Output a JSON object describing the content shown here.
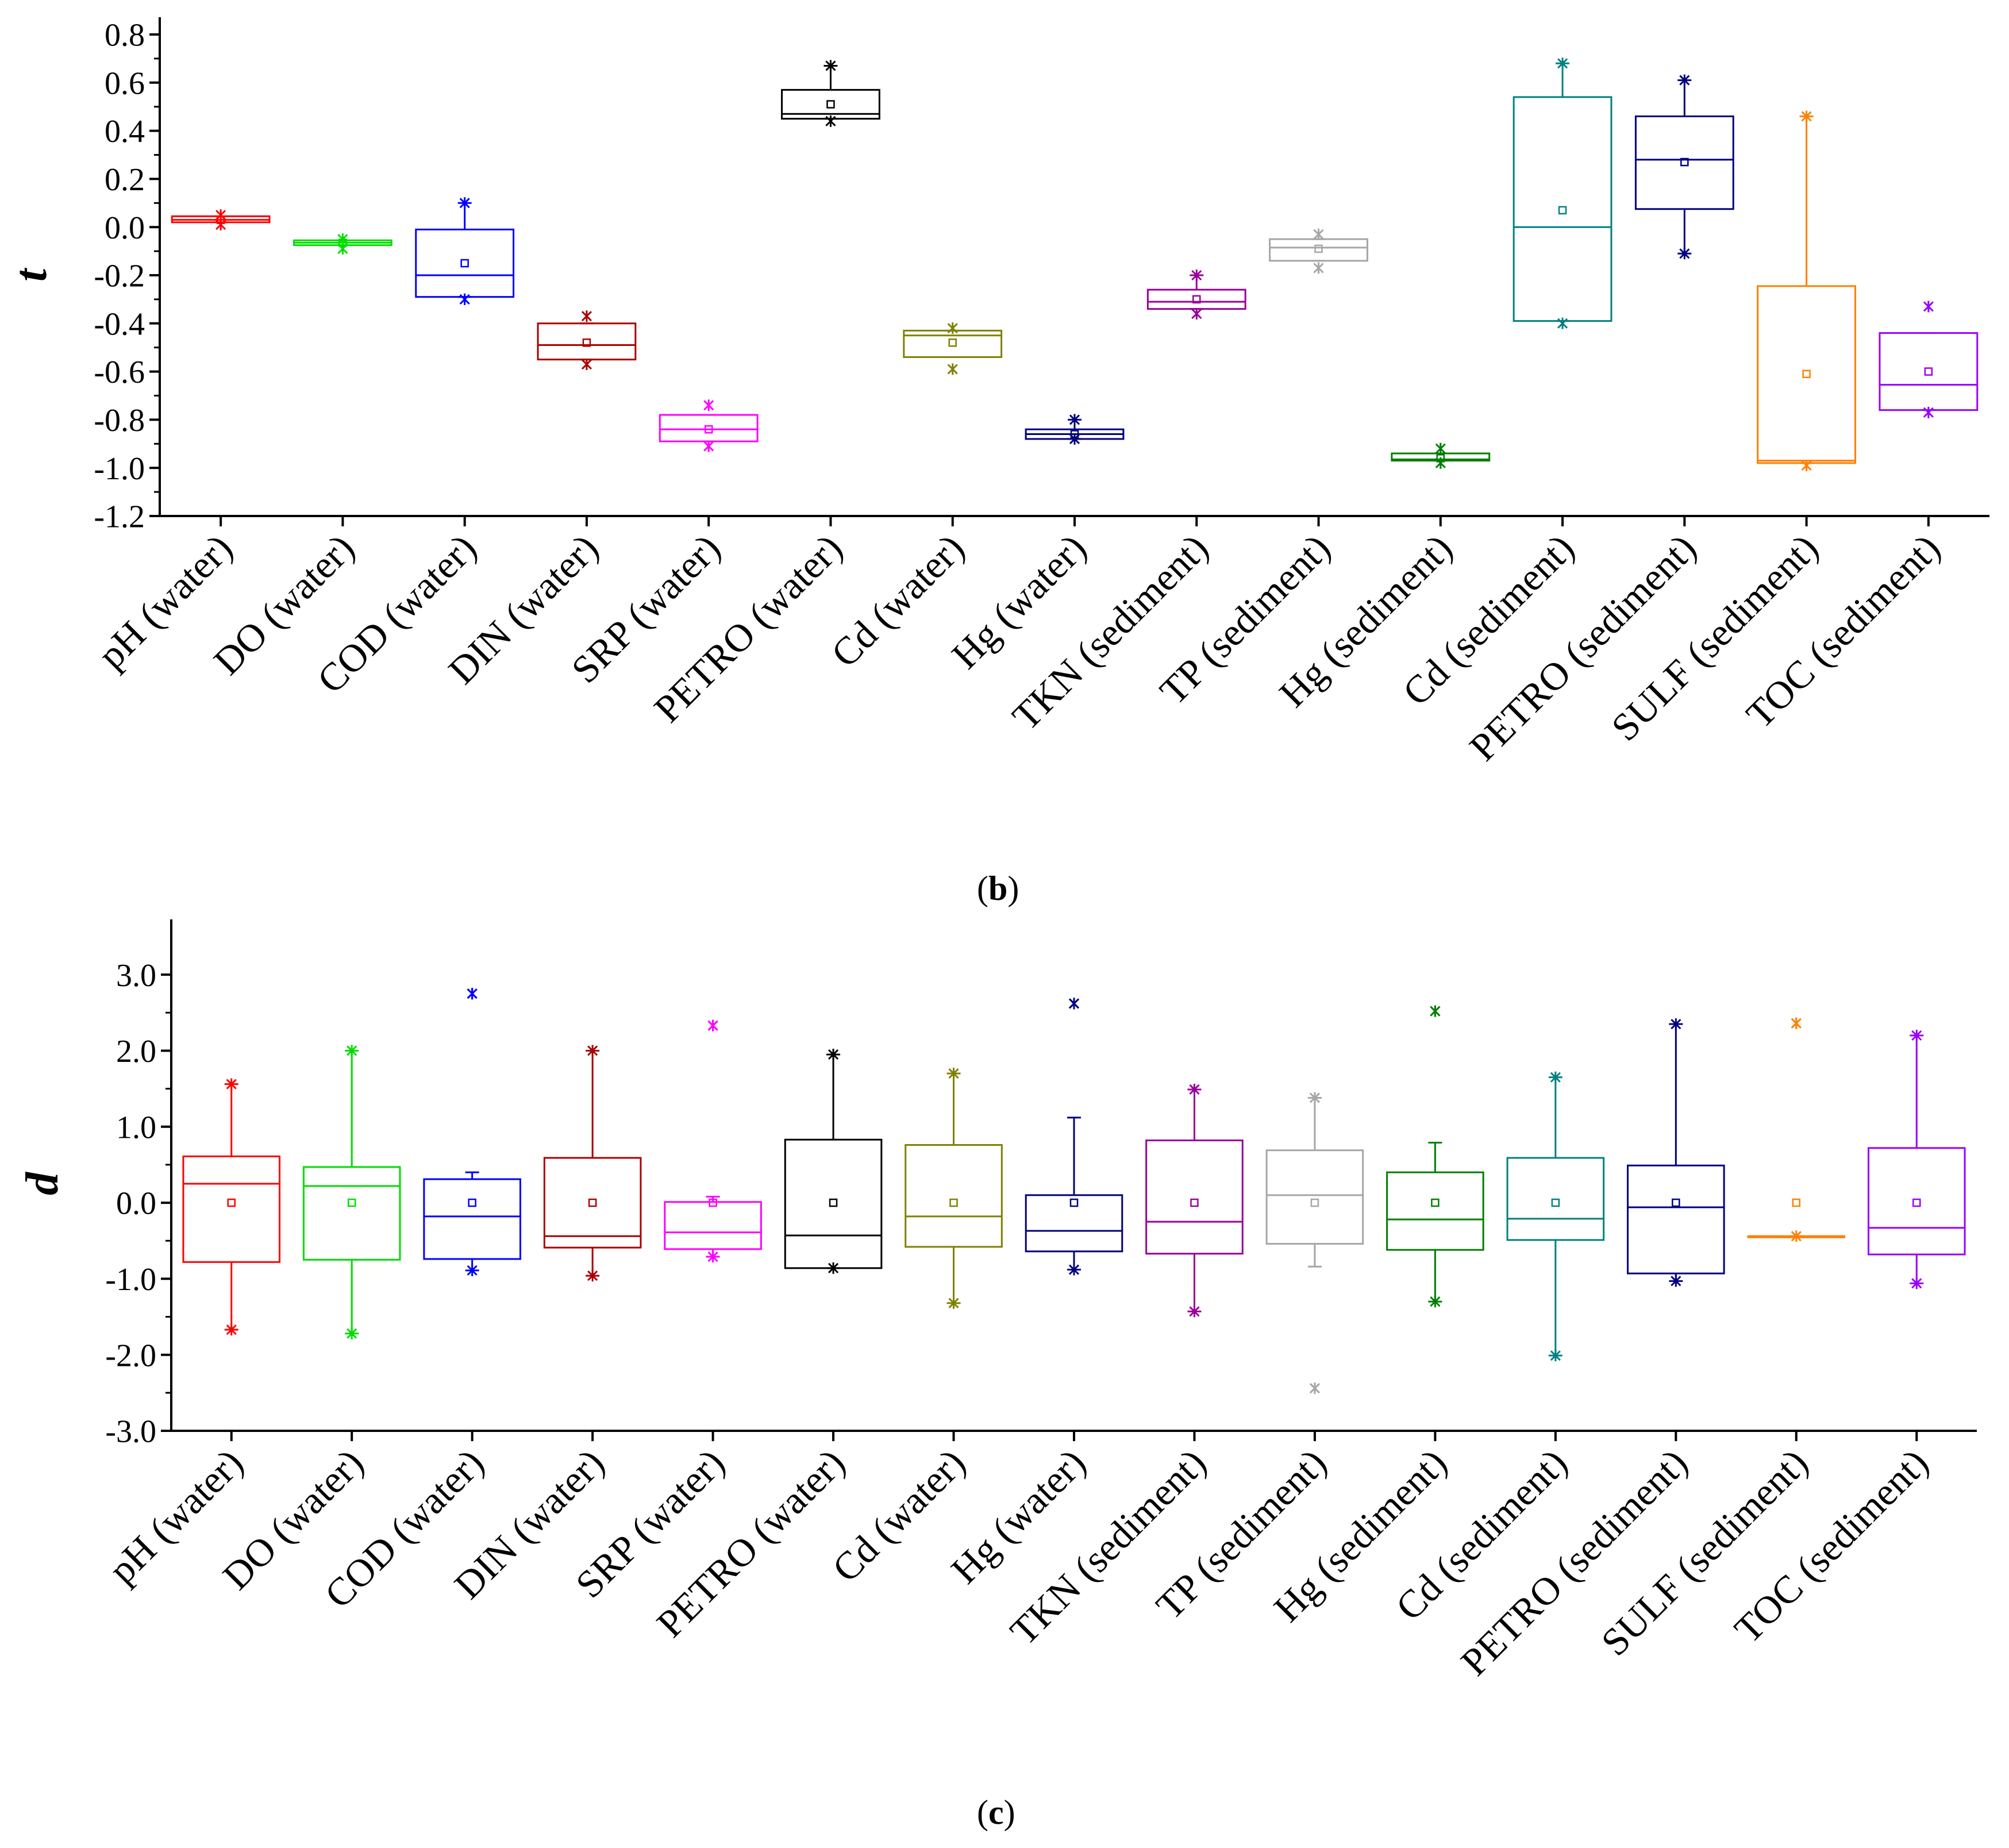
{
  "chart_data": [
    {
      "type": "box",
      "panel_letter": "b",
      "ylabel": "t",
      "ylim": [
        -1.2,
        0.8
      ],
      "yticks": [
        "0.8",
        "0.6",
        "0.4",
        "0.2",
        "0.0",
        "-0.2",
        "-0.4",
        "-0.6",
        "-0.8",
        "-1.0",
        "-1.2"
      ],
      "yticks_values": [
        0.8,
        0.6,
        0.4,
        0.2,
        0.0,
        -0.2,
        -0.4,
        -0.6,
        -0.8,
        -1.0,
        -1.2
      ],
      "categories": [
        "pH (water)",
        "DO (water)",
        "COD (water)",
        "DIN (water)",
        "SRP (water)",
        "PETRO (water)",
        "Cd (water)",
        "Hg (water)",
        "TKN (sediment)",
        "TP (sediment)",
        "Hg (sediment)",
        "Cd (sediment)",
        "PETRO (sediment)",
        "SULF (sediment)",
        "TOC (sediment)"
      ],
      "colors": [
        "#ff0000",
        "#00dd00",
        "#0000ff",
        "#aa0000",
        "#ff00ff",
        "#000000",
        "#808000",
        "#000080",
        "#990099",
        "#a6a6a6",
        "#007f00",
        "#008080",
        "#000080",
        "#ff8000",
        "#9900ff"
      ],
      "boxes": [
        {
          "q1": 0.02,
          "median": 0.03,
          "q3": 0.045,
          "mean": 0.03,
          "min": 0.01,
          "max": 0.05,
          "whisk_lo": 0.02,
          "whisk_hi": 0.045
        },
        {
          "q1": -0.075,
          "median": -0.065,
          "q3": -0.055,
          "mean": -0.065,
          "min": -0.09,
          "max": -0.05,
          "whisk_lo": -0.075,
          "whisk_hi": -0.055
        },
        {
          "q1": -0.29,
          "median": -0.2,
          "q3": -0.01,
          "mean": -0.15,
          "min": -0.3,
          "max": 0.1,
          "whisk_lo": -0.29,
          "whisk_hi": 0.1
        },
        {
          "q1": -0.55,
          "median": -0.49,
          "q3": -0.4,
          "mean": -0.48,
          "min": -0.57,
          "max": -0.37,
          "whisk_lo": -0.55,
          "whisk_hi": -0.4
        },
        {
          "q1": -0.89,
          "median": -0.84,
          "q3": -0.78,
          "mean": -0.84,
          "min": -0.91,
          "max": -0.74,
          "whisk_lo": -0.89,
          "whisk_hi": -0.78
        },
        {
          "q1": 0.45,
          "median": 0.47,
          "q3": 0.57,
          "mean": 0.51,
          "min": 0.44,
          "max": 0.67,
          "whisk_lo": 0.45,
          "whisk_hi": 0.67
        },
        {
          "q1": -0.54,
          "median": -0.45,
          "q3": -0.43,
          "mean": -0.48,
          "min": -0.59,
          "max": -0.42,
          "whisk_lo": -0.54,
          "whisk_hi": -0.43
        },
        {
          "q1": -0.88,
          "median": -0.86,
          "q3": -0.84,
          "mean": -0.86,
          "min": -0.88,
          "max": -0.8,
          "whisk_lo": -0.88,
          "whisk_hi": -0.8
        },
        {
          "q1": -0.34,
          "median": -0.31,
          "q3": -0.26,
          "mean": -0.3,
          "min": -0.36,
          "max": -0.2,
          "whisk_lo": -0.34,
          "whisk_hi": -0.2
        },
        {
          "q1": -0.14,
          "median": -0.085,
          "q3": -0.05,
          "mean": -0.09,
          "min": -0.17,
          "max": -0.03,
          "whisk_lo": -0.14,
          "whisk_hi": -0.05
        },
        {
          "q1": -0.97,
          "median": -0.965,
          "q3": -0.94,
          "mean": -0.96,
          "min": -0.98,
          "max": -0.92,
          "whisk_lo": -0.97,
          "whisk_hi": -0.94
        },
        {
          "q1": -0.39,
          "median": 0.0,
          "q3": 0.54,
          "mean": 0.07,
          "min": -0.4,
          "max": 0.68,
          "whisk_lo": -0.39,
          "whisk_hi": 0.68
        },
        {
          "q1": 0.075,
          "median": 0.28,
          "q3": 0.46,
          "mean": 0.27,
          "min": -0.11,
          "max": 0.61,
          "whisk_lo": -0.11,
          "whisk_hi": 0.61
        },
        {
          "q1": -0.98,
          "median": -0.97,
          "q3": -0.245,
          "mean": -0.61,
          "min": -0.99,
          "max": 0.46,
          "whisk_lo": -0.98,
          "whisk_hi": 0.46
        },
        {
          "q1": -0.76,
          "median": -0.655,
          "q3": -0.44,
          "mean": -0.6,
          "min": -0.77,
          "max": -0.33,
          "whisk_lo": -0.76,
          "whisk_hi": -0.44
        }
      ]
    },
    {
      "type": "box",
      "panel_letter": "c",
      "ylabel": "d",
      "ylim": [
        -3.0,
        3.5
      ],
      "yticks": [
        "3.0",
        "2.0",
        "1.0",
        "0.0",
        "-1.0",
        "-2.0",
        "-3.0"
      ],
      "yticks_values": [
        3.0,
        2.0,
        1.0,
        0.0,
        -1.0,
        -2.0,
        -3.0
      ],
      "categories": [
        "pH (water)",
        "DO (water)",
        "COD (water)",
        "DIN (water)",
        "SRP (water)",
        "PETRO (water)",
        "Cd (water)",
        "Hg (water)",
        "TKN (sediment)",
        "TP (sediment)",
        "Hg (sediment)",
        "Cd (sediment)",
        "PETRO (sediment)",
        "SULF (sediment)",
        "TOC (sediment)"
      ],
      "colors": [
        "#ff0000",
        "#00dd00",
        "#0000ff",
        "#aa0000",
        "#ff00ff",
        "#000000",
        "#808000",
        "#000080",
        "#990099",
        "#a6a6a6",
        "#007f00",
        "#008080",
        "#000080",
        "#ff8000",
        "#9900ff"
      ],
      "boxes": [
        {
          "q1": -0.78,
          "median": 0.25,
          "q3": 0.61,
          "mean": 0.0,
          "min": -1.67,
          "max": 1.56,
          "whisk_lo": -1.67,
          "whisk_hi": 1.56
        },
        {
          "q1": -0.75,
          "median": 0.22,
          "q3": 0.47,
          "mean": 0.0,
          "min": -1.72,
          "max": 2.0,
          "whisk_lo": -1.72,
          "whisk_hi": 2.0
        },
        {
          "q1": -0.74,
          "median": -0.18,
          "q3": 0.31,
          "mean": 0.0,
          "min": -0.89,
          "max": 2.75,
          "whisk_lo": -0.89,
          "whisk_hi": 0.4,
          "outliers": [
            2.75
          ]
        },
        {
          "q1": -0.59,
          "median": -0.44,
          "q3": 0.59,
          "mean": 0.0,
          "min": -0.96,
          "max": 2.0,
          "whisk_lo": -0.96,
          "whisk_hi": 2.0
        },
        {
          "q1": -0.61,
          "median": -0.39,
          "q3": 0.01,
          "mean": 0.0,
          "min": -0.71,
          "max": 2.33,
          "whisk_lo": -0.71,
          "whisk_hi": 0.08,
          "outliers": [
            2.33
          ]
        },
        {
          "q1": -0.86,
          "median": -0.43,
          "q3": 0.83,
          "mean": 0.0,
          "min": -0.86,
          "max": 1.95,
          "whisk_lo": -0.86,
          "whisk_hi": 1.95
        },
        {
          "q1": -0.58,
          "median": -0.18,
          "q3": 0.76,
          "mean": 0.0,
          "min": -1.32,
          "max": 1.7,
          "whisk_lo": -1.32,
          "whisk_hi": 1.7
        },
        {
          "q1": -0.64,
          "median": -0.37,
          "q3": 0.1,
          "mean": 0.0,
          "min": -0.88,
          "max": 2.62,
          "whisk_lo": -0.88,
          "whisk_hi": 1.12,
          "outliers": [
            2.62
          ]
        },
        {
          "q1": -0.67,
          "median": -0.25,
          "q3": 0.82,
          "mean": 0.0,
          "min": -1.43,
          "max": 1.49,
          "whisk_lo": -1.43,
          "whisk_hi": 1.49
        },
        {
          "q1": -0.54,
          "median": 0.1,
          "q3": 0.69,
          "mean": 0.0,
          "min": -2.44,
          "max": 1.38,
          "whisk_lo": -0.84,
          "whisk_hi": 1.38,
          "outliers": [
            -2.44
          ]
        },
        {
          "q1": -0.62,
          "median": -0.22,
          "q3": 0.4,
          "mean": 0.0,
          "min": -1.3,
          "max": 2.52,
          "whisk_lo": -1.3,
          "whisk_hi": 0.79,
          "outliers": [
            2.52
          ]
        },
        {
          "q1": -0.49,
          "median": -0.21,
          "q3": 0.59,
          "mean": 0.0,
          "min": -2.01,
          "max": 1.65,
          "whisk_lo": -2.01,
          "whisk_hi": 1.65
        },
        {
          "q1": -0.93,
          "median": -0.06,
          "q3": 0.49,
          "mean": 0.0,
          "min": -1.03,
          "max": 2.35,
          "whisk_lo": -1.03,
          "whisk_hi": 2.35
        },
        {
          "q1": -0.44,
          "median": -0.44,
          "q3": -0.44,
          "mean": 0.0,
          "min": -0.44,
          "max": 2.36,
          "whisk_lo": -0.44,
          "whisk_hi": -0.44,
          "outliers": [
            2.36
          ]
        },
        {
          "q1": -0.68,
          "median": -0.33,
          "q3": 0.72,
          "mean": 0.0,
          "min": -1.06,
          "max": 2.2,
          "whisk_lo": -1.06,
          "whisk_hi": 2.2
        }
      ]
    }
  ]
}
